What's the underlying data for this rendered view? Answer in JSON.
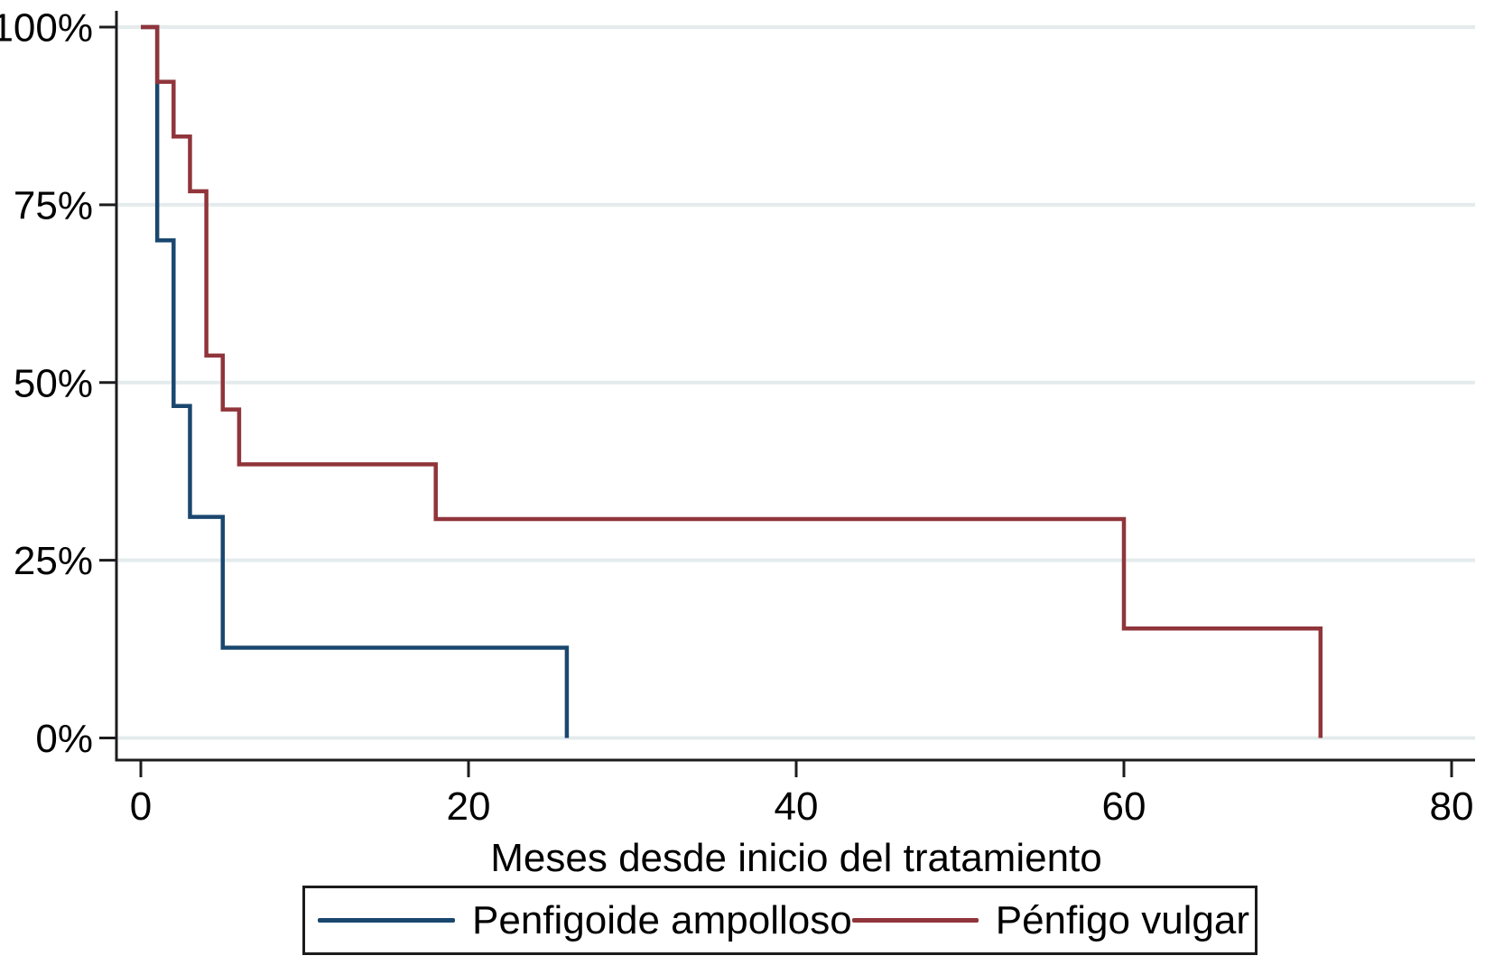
{
  "chart_data": {
    "type": "line",
    "subtype": "kaplan-meier-step",
    "title": "",
    "xlabel": "Meses desde inicio del tratamiento",
    "ylabel": "",
    "xlim": [
      0,
      80
    ],
    "ylim": [
      0,
      100
    ],
    "x_ticks": [
      0,
      20,
      40,
      60,
      80
    ],
    "x_tick_labels": [
      "0",
      "20",
      "40",
      "60",
      "80"
    ],
    "y_ticks": [
      0,
      25,
      50,
      75,
      100
    ],
    "y_tick_labels": [
      "0%",
      "25%",
      "50%",
      "75%",
      "100%"
    ],
    "grid": "horizontal-only",
    "legend_position": "bottom-box",
    "series": [
      {
        "name": "Penfigoide ampolloso",
        "color": "#1a476f",
        "steps_x_months": [
          0,
          1,
          2,
          3,
          5,
          26
        ],
        "steps_y_percent": [
          100,
          70,
          46.7,
          31.1,
          12.7,
          0
        ]
      },
      {
        "name": "Pénfigo vulgar",
        "color": "#90353b",
        "steps_x_months": [
          0,
          1,
          2,
          3,
          4,
          5,
          6,
          18,
          60,
          72
        ],
        "steps_y_percent": [
          100,
          92.3,
          84.6,
          76.9,
          53.8,
          46.2,
          38.5,
          30.8,
          15.4,
          0
        ]
      }
    ]
  },
  "colors": {
    "background": "#ffffff",
    "axis": "#1c1c1c",
    "grid": "#e4ebec",
    "text": "#000000",
    "legend_border": "#1c1c1c"
  }
}
